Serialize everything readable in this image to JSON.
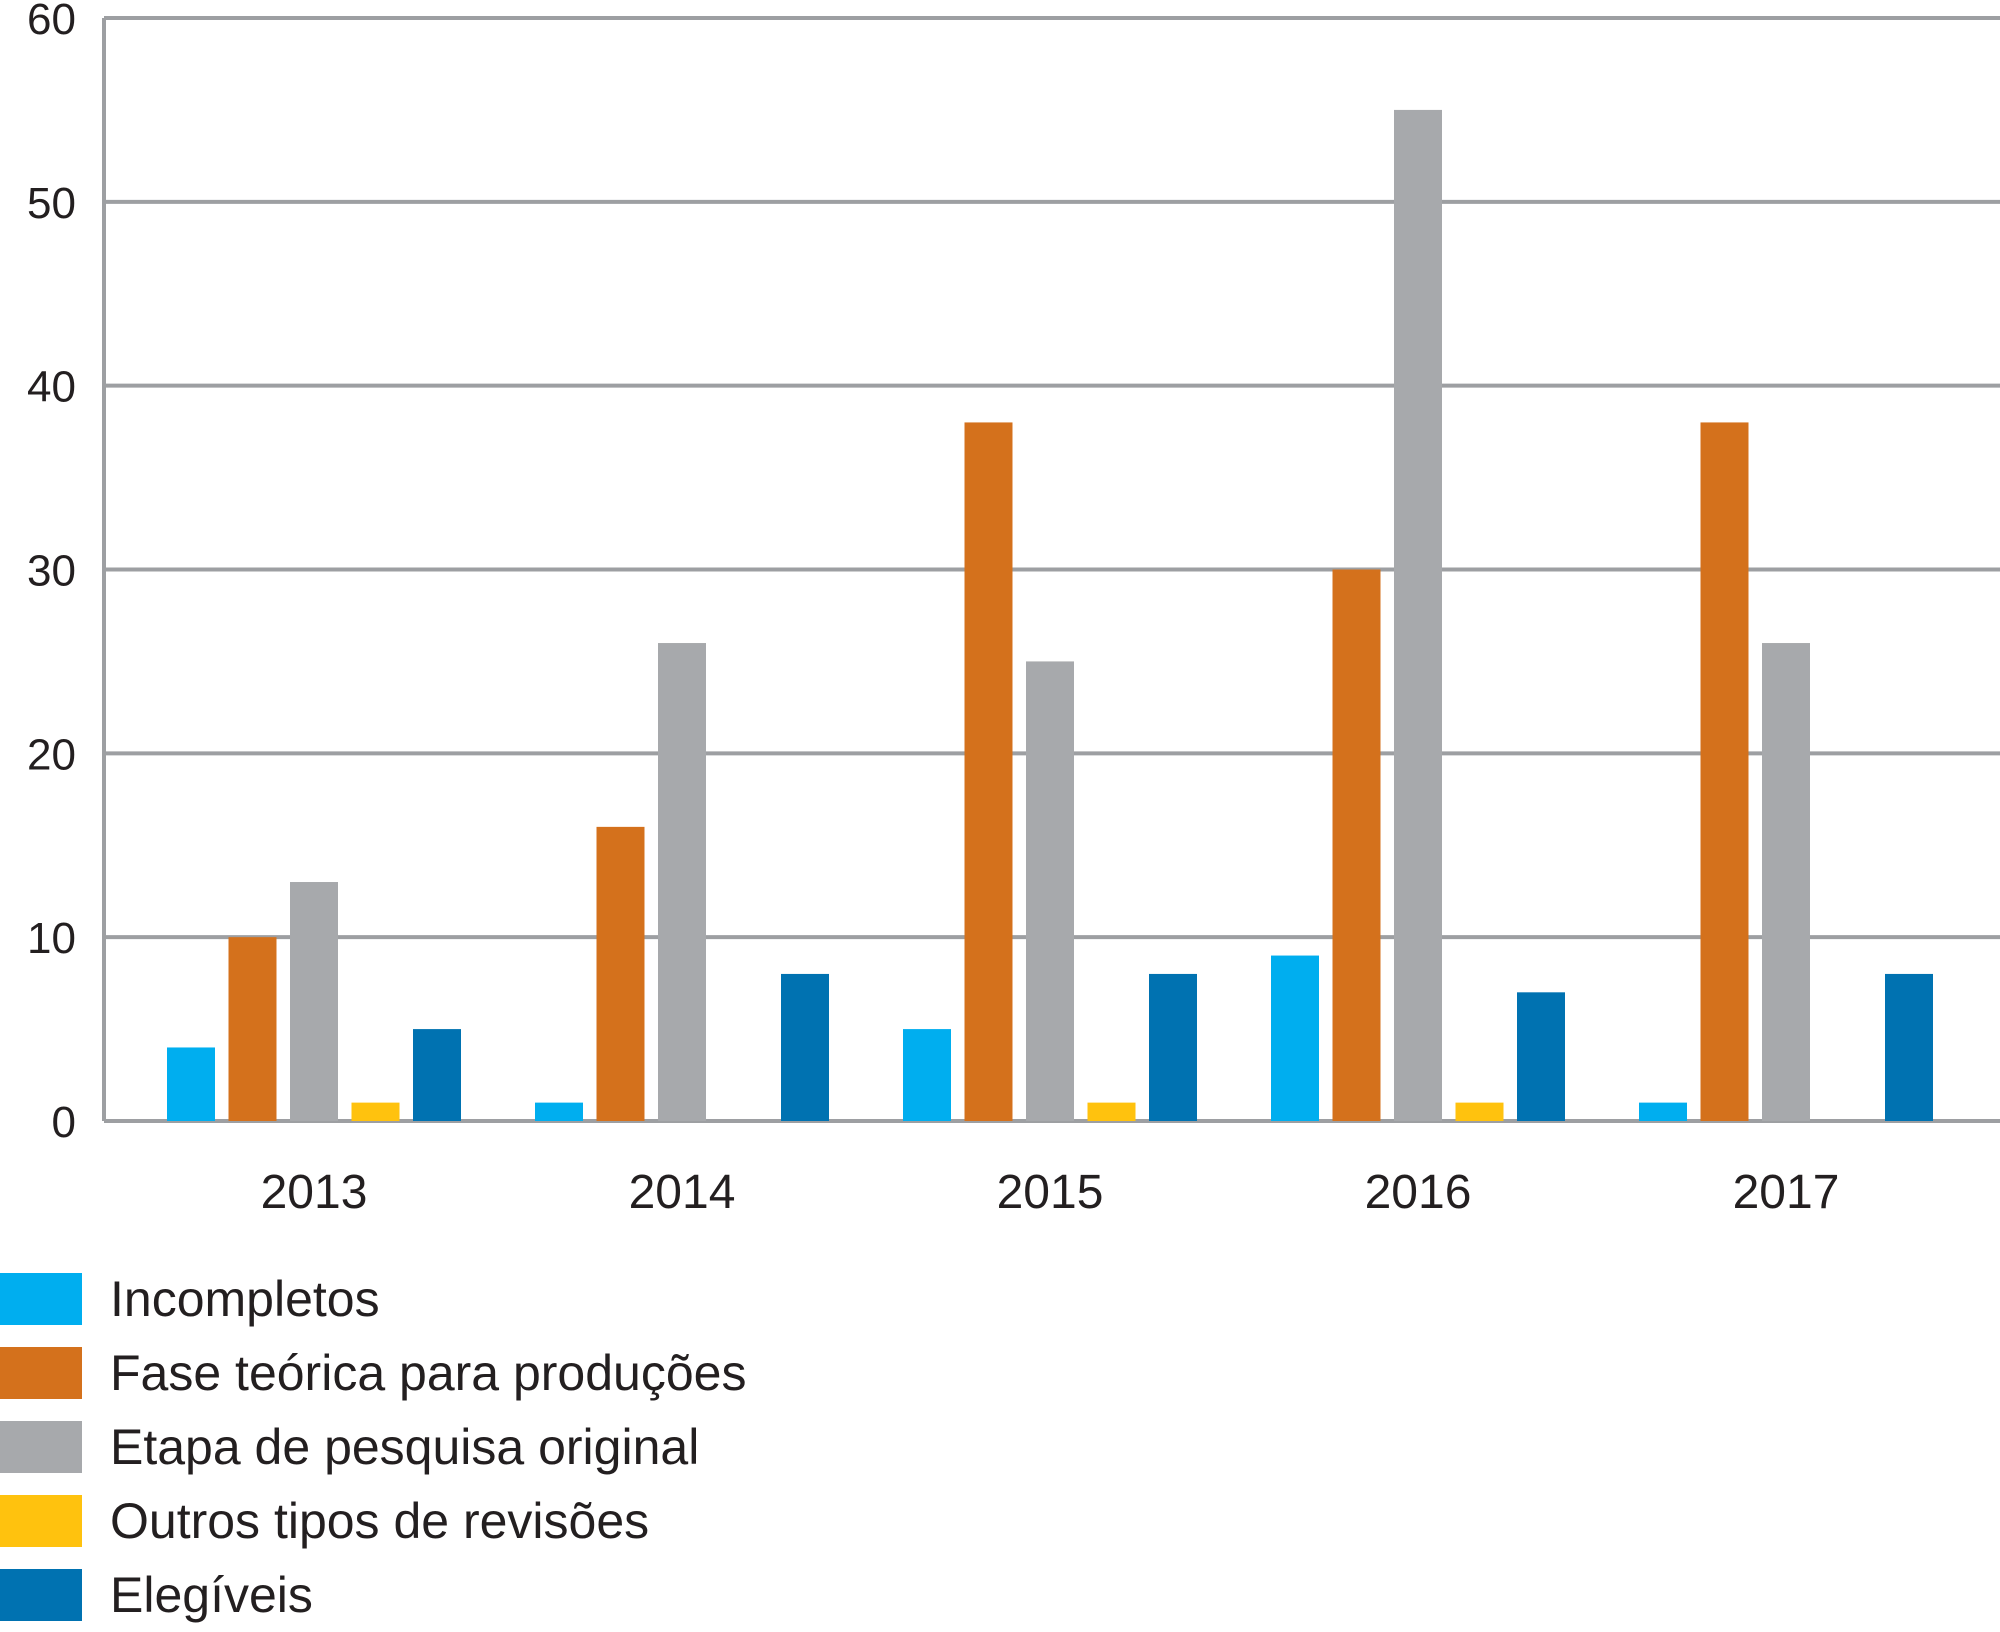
{
  "chart_data": {
    "type": "bar",
    "title": "",
    "xlabel": "",
    "ylabel": "",
    "categories": [
      "2013",
      "2014",
      "2015",
      "2016",
      "2017"
    ],
    "ylim": [
      0,
      60
    ],
    "yticks": [
      0,
      10,
      20,
      30,
      40,
      50,
      60
    ],
    "grid": "horizontal",
    "legend_position": "bottom-left",
    "series": [
      {
        "name": "Incompletos",
        "color": "#00aeef",
        "values": [
          4,
          1,
          5,
          9,
          1
        ]
      },
      {
        "name": "Fase teórica para produções",
        "color": "#d4711c",
        "values": [
          10,
          16,
          38,
          30,
          38
        ]
      },
      {
        "name": "Etapa de pesquisa original",
        "color": "#a7a9ac",
        "values": [
          13,
          26,
          25,
          55,
          26
        ]
      },
      {
        "name": "Outros tipos de revisões",
        "color": "#ffc20e",
        "values": [
          1,
          0,
          1,
          1,
          0
        ]
      },
      {
        "name": "Elegíveis",
        "color": "#0072b1",
        "values": [
          5,
          8,
          8,
          7,
          8
        ]
      }
    ]
  }
}
